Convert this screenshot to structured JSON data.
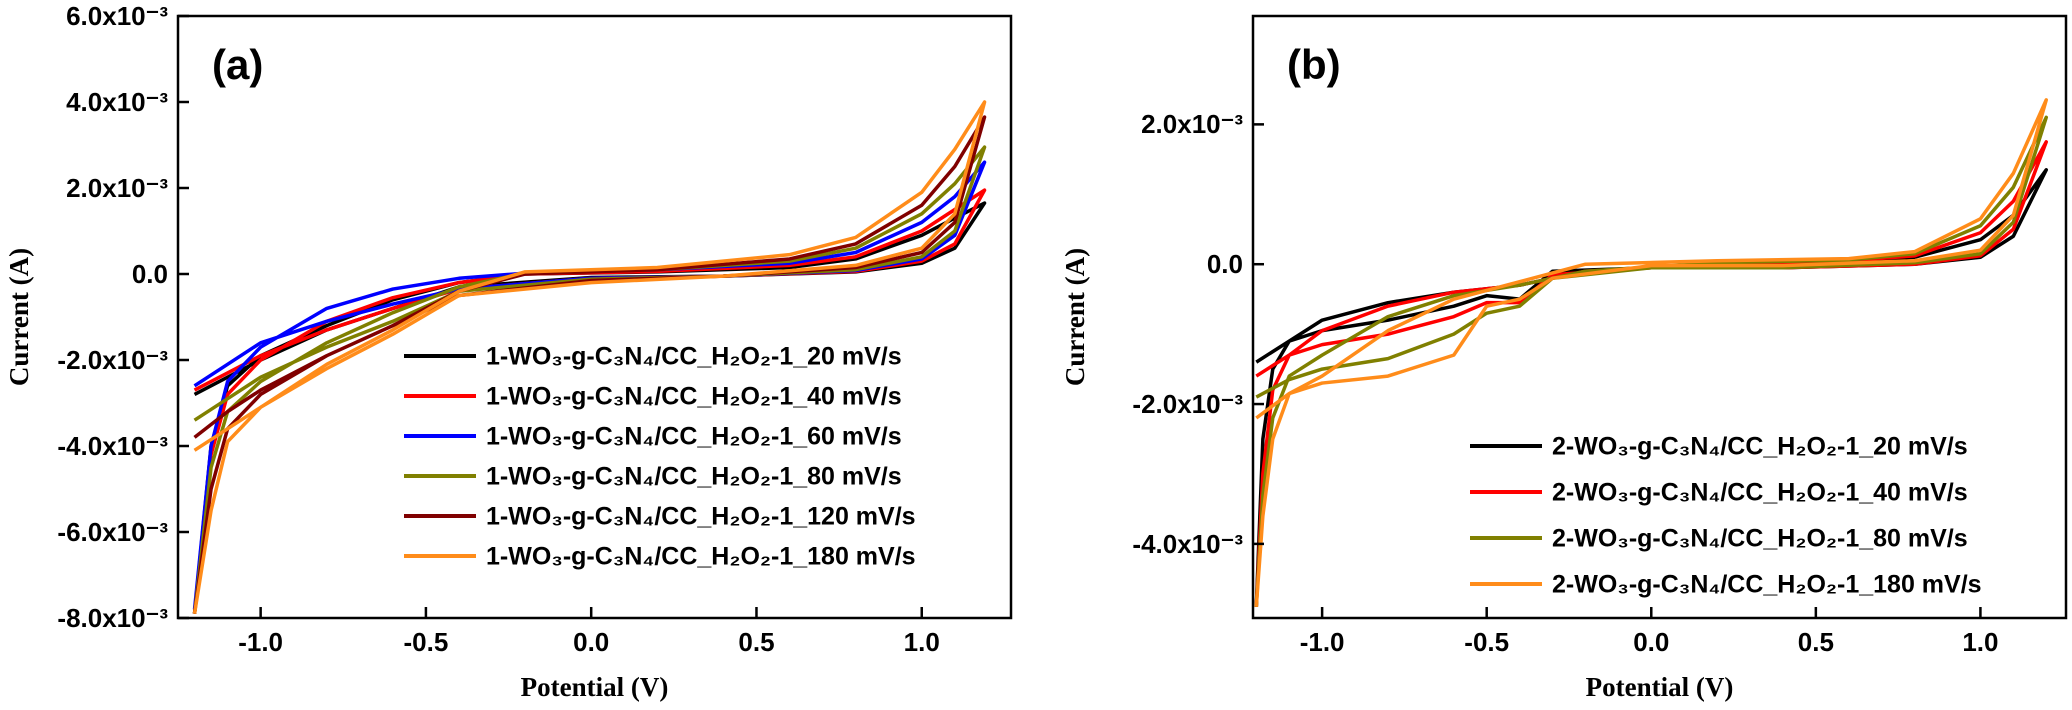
{
  "chart_data": [
    {
      "type": "line",
      "panel_label": "(a)",
      "x_label": "Potential (V)",
      "y_label": "Current (A)",
      "xlim": [
        -1.25,
        1.27
      ],
      "ylim": [
        -0.008,
        0.006
      ],
      "xticks": [
        {
          "value": -1.0,
          "label": "-1.0"
        },
        {
          "value": -0.5,
          "label": "-0.5"
        },
        {
          "value": 0,
          "label": "0.0"
        },
        {
          "value": 0.5,
          "label": "0.5"
        },
        {
          "value": 1.0,
          "label": "1.0"
        }
      ],
      "yticks": [
        {
          "value": -0.008,
          "label": "-8.0x10⁻³"
        },
        {
          "value": -0.006,
          "label": "-6.0x10⁻³"
        },
        {
          "value": -0.004,
          "label": "-4.0x10⁻³"
        },
        {
          "value": -0.002,
          "label": "-2.0x10⁻³"
        },
        {
          "value": 0,
          "label": "0.0"
        },
        {
          "value": 0.002,
          "label": "2.0x10⁻³"
        },
        {
          "value": 0.004,
          "label": "4.0x10⁻³"
        },
        {
          "value": 0.006,
          "label": "6.0x10⁻³"
        }
      ],
      "legend": "lower right",
      "x": [
        -1.2,
        -1.15,
        -1.1,
        -1.0,
        -0.8,
        -0.6,
        -0.4,
        -0.2,
        0.2,
        0.6,
        0.8,
        1.0,
        1.1,
        1.19,
        1.1,
        1.0,
        0.8,
        0.4,
        0,
        -0.4,
        -0.6,
        -0.8,
        -1.0,
        -1.1,
        -1.2
      ],
      "series": [
        {
          "name": "1-WO₃-g-C₃N₄/CC_H₂O₂-1_20 mV/s",
          "color": "#000000",
          "values": [
            -0.0079,
            -0.004,
            -0.0026,
            -0.0019,
            -0.0012,
            -0.0006,
            -0.0002,
            0,
            5e-05,
            0.00015,
            0.00035,
            0.0009,
            0.0013,
            0.00165,
            0.0006,
            0.00025,
            5e-05,
            -5e-05,
            -8e-05,
            -0.0003,
            -0.0008,
            -0.0013,
            -0.002,
            -0.0024,
            -0.0028
          ]
        },
        {
          "name": "1-WO₃-g-C₃N₄/CC_H₂O₂-1_40 mV/s",
          "color": "#ff0000",
          "values": [
            -0.0079,
            -0.0042,
            -0.0028,
            -0.002,
            -0.0011,
            -0.00055,
            -0.0002,
            0,
            6e-05,
            0.0002,
            0.0004,
            0.001,
            0.0015,
            0.00195,
            0.0007,
            0.0003,
            6e-05,
            -5e-05,
            -0.0001,
            -0.00035,
            -0.0008,
            -0.0013,
            -0.0019,
            -0.0023,
            -0.0027
          ]
        },
        {
          "name": "1-WO₃-g-C₃N₄/CC_H₂O₂-1_60 mV/s",
          "color": "#0000ff",
          "values": [
            -0.0078,
            -0.004,
            -0.0025,
            -0.0017,
            -0.0008,
            -0.00035,
            -0.0001,
            2e-05,
            0.0001,
            0.00025,
            0.0005,
            0.0012,
            0.0018,
            0.0026,
            0.0009,
            0.00035,
            8e-05,
            -5e-05,
            -0.0001,
            -0.00035,
            -0.0007,
            -0.0011,
            -0.0016,
            -0.0021,
            -0.0026
          ]
        },
        {
          "name": "1-WO₃-g-C₃N₄/CC_H₂O₂-1_80 mV/s",
          "color": "#808000",
          "values": [
            -0.0079,
            -0.0045,
            -0.0032,
            -0.0025,
            -0.0016,
            -0.0009,
            -0.0003,
            2e-05,
            0.0001,
            0.0003,
            0.0006,
            0.0014,
            0.0021,
            0.00295,
            0.001,
            0.0004,
            0.0001,
            -5e-05,
            -0.00012,
            -0.0004,
            -0.0011,
            -0.0017,
            -0.0024,
            -0.0029,
            -0.0034
          ]
        },
        {
          "name": "1-WO₃-g-C₃N₄/CC_H₂O₂-1_120 mV/s",
          "color": "#800000",
          "values": [
            -0.0079,
            -0.005,
            -0.0036,
            -0.0028,
            -0.0019,
            -0.0012,
            -0.0004,
            0,
            0.0001,
            0.00035,
            0.0007,
            0.0016,
            0.0025,
            0.00365,
            0.0012,
            0.0005,
            0.00015,
            -5e-05,
            -0.00015,
            -0.0005,
            -0.0012,
            -0.0019,
            -0.0027,
            -0.0032,
            -0.0038
          ]
        },
        {
          "name": "1-WO₃-g-C₃N₄/CC_H₂O₂-1_180 mV/s",
          "color": "#ff8c1a",
          "values": [
            -0.0079,
            -0.0055,
            -0.0039,
            -0.0031,
            -0.0021,
            -0.0013,
            -0.0004,
            5e-05,
            0.00015,
            0.00045,
            0.00085,
            0.0019,
            0.0029,
            0.004,
            0.0014,
            0.0006,
            0.0002,
            -5e-05,
            -0.0002,
            -0.0005,
            -0.0014,
            -0.0022,
            -0.0031,
            -0.0036,
            -0.0041
          ]
        }
      ]
    },
    {
      "type": "line",
      "panel_label": "(b)",
      "x_label": "Potential (V)",
      "y_label": "Current (A)",
      "xlim": [
        -1.21,
        1.26
      ],
      "ylim": [
        -0.00506,
        0.00355
      ],
      "xticks": [
        {
          "value": -1.0,
          "label": "-1.0"
        },
        {
          "value": -0.5,
          "label": "-0.5"
        },
        {
          "value": 0,
          "label": "0.0"
        },
        {
          "value": 0.5,
          "label": "0.5"
        },
        {
          "value": 1.0,
          "label": "1.0"
        }
      ],
      "yticks": [
        {
          "value": -0.004,
          "label": "-4.0x10⁻³"
        },
        {
          "value": -0.002,
          "label": "-2.0x10⁻³"
        },
        {
          "value": 0,
          "label": "0.0"
        },
        {
          "value": 0.002,
          "label": "2.0x10⁻³"
        }
      ],
      "legend": "lower right",
      "x": [
        -1.2,
        -1.18,
        -1.15,
        -1.1,
        -1.0,
        -0.8,
        -0.6,
        -0.4,
        -0.2,
        0.2,
        0.6,
        0.8,
        1.0,
        1.1,
        1.2,
        1.1,
        1.0,
        0.8,
        0.4,
        0,
        -0.3,
        -0.4,
        -0.5,
        -0.6,
        -0.8,
        -1.0,
        -1.1,
        -1.2
      ],
      "series": [
        {
          "name": "2-WO₃-g-C₃N₄/CC_H₂O₂-1_20 mV/s",
          "color": "#000000",
          "values": [
            -0.0049,
            -0.0025,
            -0.0015,
            -0.0011,
            -0.0008,
            -0.00055,
            -0.0004,
            -0.0003,
            -0.0001,
            0,
            3e-05,
            0.0001,
            0.00035,
            0.0007,
            0.00135,
            0.0004,
            0.0001,
            0,
            -5e-05,
            -5e-05,
            -0.0001,
            -0.0005,
            -0.00045,
            -0.0006,
            -0.0008,
            -0.00095,
            -0.0011,
            -0.0014
          ]
        },
        {
          "name": "2-WO₃-g-C₃N₄/CC_H₂O₂-1_40 mV/s",
          "color": "#ff0000",
          "values": [
            -0.0049,
            -0.003,
            -0.0018,
            -0.0013,
            -0.00095,
            -0.0006,
            -0.0004,
            -0.0003,
            -0.0001,
            0,
            5e-05,
            0.00012,
            0.00045,
            0.0009,
            0.00175,
            0.0005,
            0.00012,
            0,
            -5e-05,
            -5e-05,
            -0.00015,
            -0.00055,
            -0.00055,
            -0.00075,
            -0.001,
            -0.00115,
            -0.0013,
            -0.0016
          ]
        },
        {
          "name": "2-WO₃-g-C₃N₄/CC_H₂O₂-1_80 mV/s",
          "color": "#808000",
          "values": [
            -0.0049,
            -0.0033,
            -0.0022,
            -0.0016,
            -0.0013,
            -0.00075,
            -0.00045,
            -0.0003,
            -0.0001,
            2e-05,
            6e-05,
            0.00015,
            0.00055,
            0.0011,
            0.0021,
            0.0006,
            0.00015,
            2e-05,
            -5e-05,
            -5e-05,
            -0.0002,
            -0.0006,
            -0.0007,
            -0.001,
            -0.00135,
            -0.0015,
            -0.00165,
            -0.0019
          ]
        },
        {
          "name": "2-WO₃-g-C₃N₄/CC_H₂O₂-1_180 mV/s",
          "color": "#ff8c1a",
          "values": [
            -0.0049,
            -0.0036,
            -0.0025,
            -0.00185,
            -0.0016,
            -0.00095,
            -0.0005,
            -0.00025,
            0,
            5e-05,
            8e-05,
            0.00018,
            0.00065,
            0.0013,
            0.00235,
            0.0007,
            0.0002,
            5e-05,
            -2e-05,
            -2e-05,
            -0.0002,
            -0.0005,
            -0.0006,
            -0.0013,
            -0.0016,
            -0.0017,
            -0.00185,
            -0.0022
          ]
        }
      ]
    }
  ]
}
